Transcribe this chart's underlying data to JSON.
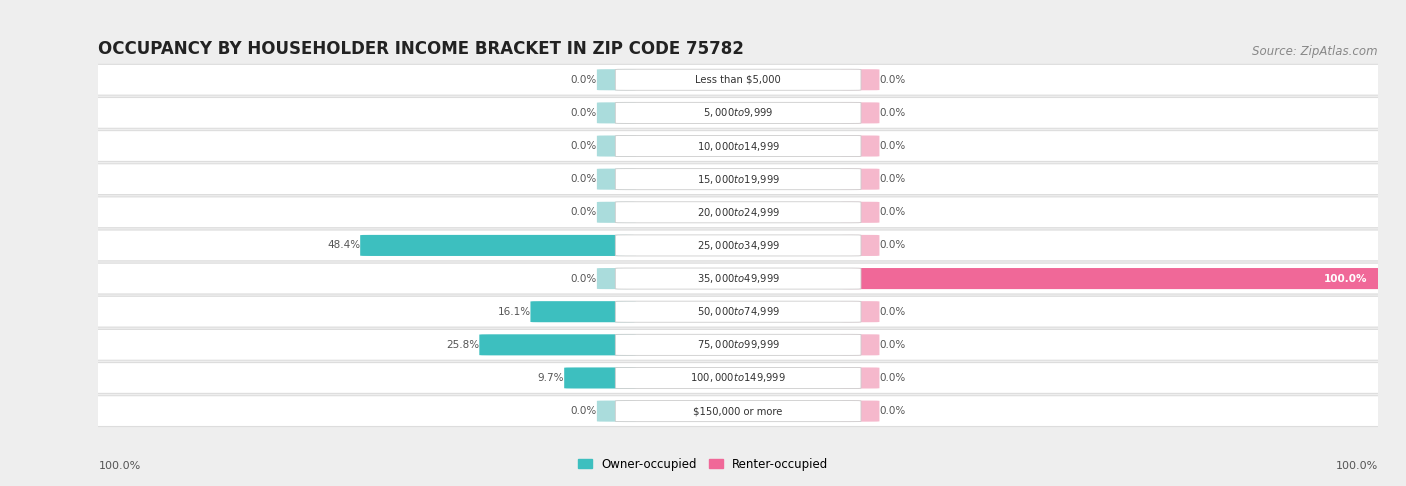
{
  "title": "OCCUPANCY BY HOUSEHOLDER INCOME BRACKET IN ZIP CODE 75782",
  "source": "Source: ZipAtlas.com",
  "categories": [
    "Less than $5,000",
    "$5,000 to $9,999",
    "$10,000 to $14,999",
    "$15,000 to $19,999",
    "$20,000 to $24,999",
    "$25,000 to $34,999",
    "$35,000 to $49,999",
    "$50,000 to $74,999",
    "$75,000 to $99,999",
    "$100,000 to $149,999",
    "$150,000 or more"
  ],
  "owner_values": [
    0.0,
    0.0,
    0.0,
    0.0,
    0.0,
    48.4,
    0.0,
    16.1,
    25.8,
    9.7,
    0.0
  ],
  "renter_values": [
    0.0,
    0.0,
    0.0,
    0.0,
    0.0,
    0.0,
    100.0,
    0.0,
    0.0,
    0.0,
    0.0
  ],
  "owner_color": "#3dbfbf",
  "owner_color_light": "#aadcdc",
  "renter_color": "#f06898",
  "renter_color_light": "#f5b8cc",
  "bg_color": "#eeeeee",
  "row_bg": "#ffffff",
  "row_border": "#dddddd",
  "axis_label_left": "100.0%",
  "axis_label_right": "100.0%",
  "legend_owner": "Owner-occupied",
  "legend_renter": "Renter-occupied",
  "title_fontsize": 12,
  "source_fontsize": 8.5,
  "max_bar_pct": 100.0,
  "stub_pct": 3.5
}
